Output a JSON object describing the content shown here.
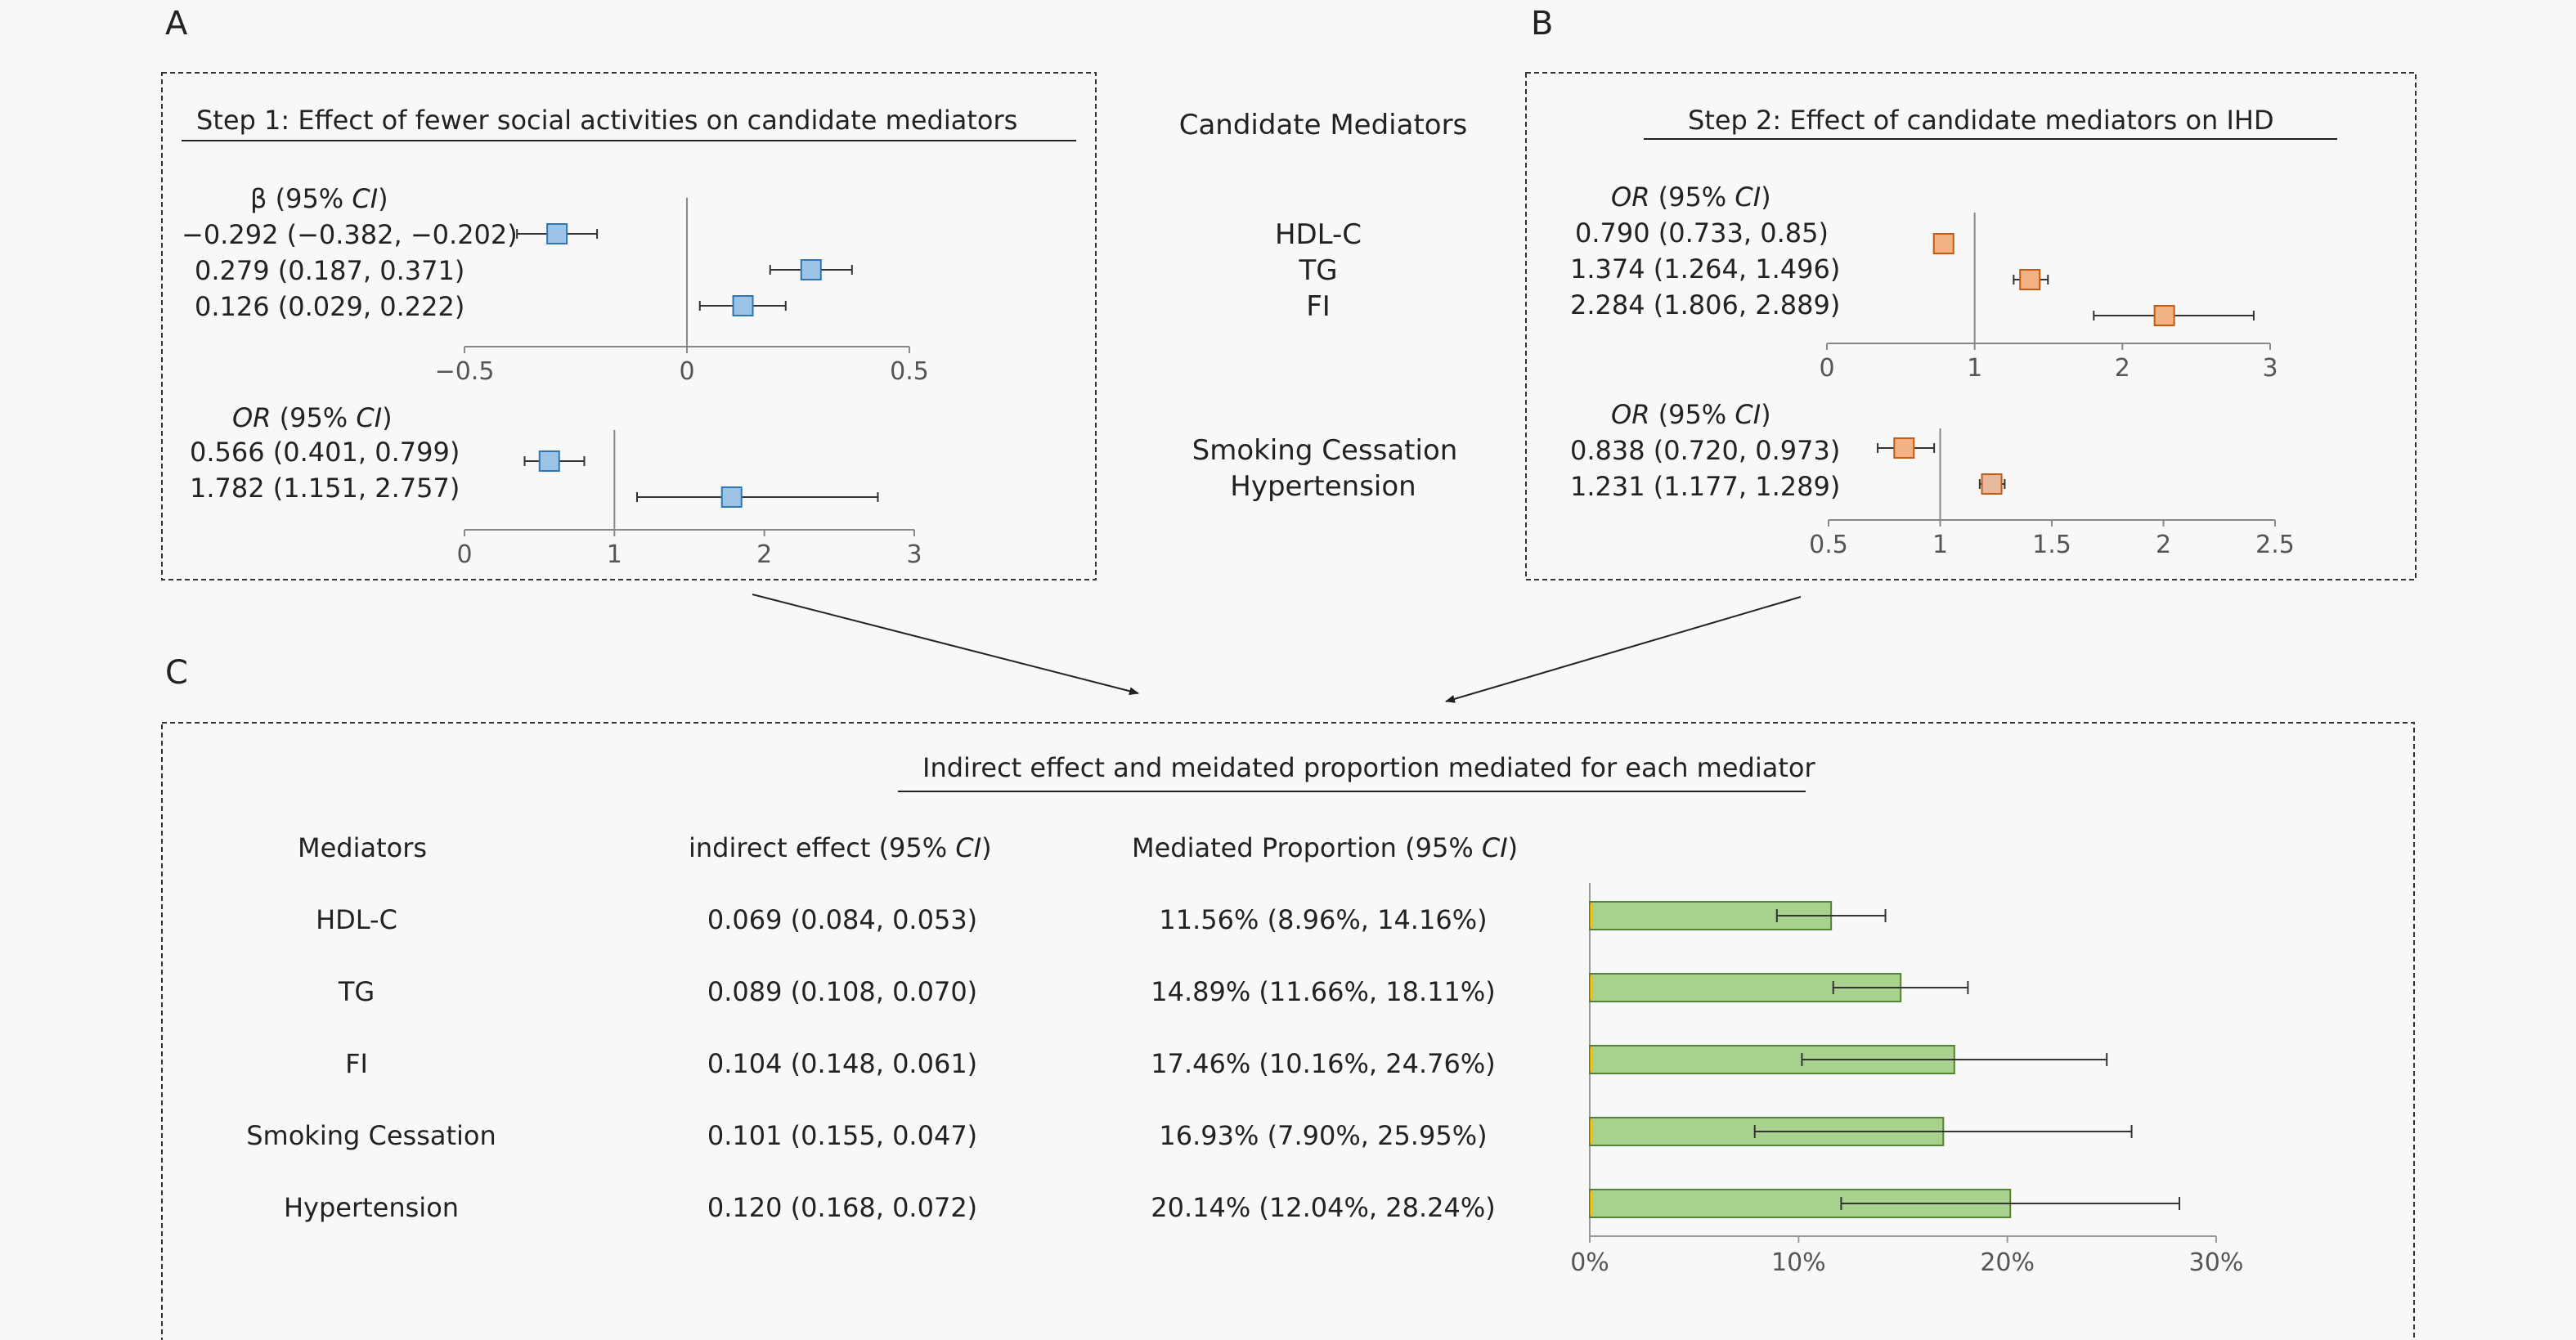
{
  "panels": {
    "a_label": "A",
    "b_label": "B",
    "c_label": "C"
  },
  "panel_a": {
    "title": "Step 1: Effect of fewer social activities on candidate mediators",
    "beta_header_prefix": "β (95% ",
    "beta_header_ci": "CI",
    "beta_header_suffix": ")",
    "beta_rows": [
      "−0.292 (−0.382, −0.202)",
      "0.279 (0.187, 0.371)",
      "0.126 (0.029, 0.222)"
    ],
    "or_header_prefix": "OR",
    "or_header_mid": " (95% ",
    "or_header_ci": "CI",
    "or_header_suffix": ")",
    "or_rows": [
      "0.566 (0.401, 0.799)",
      "1.782 (1.151, 2.757)"
    ]
  },
  "middle": {
    "heading": "Candidate Mediators",
    "mediators_top": [
      "HDL-C",
      "TG",
      "FI"
    ],
    "mediators_bottom": [
      "Smoking Cessation",
      "Hypertension"
    ]
  },
  "panel_b": {
    "title": "Step 2: Effect of candidate mediators on IHD",
    "header_prefix": "OR",
    "header_mid": " (95% ",
    "header_ci": "CI",
    "header_suffix": ")",
    "rows_top": [
      "0.790 (0.733, 0.85)",
      "1.374 (1.264, 1.496)",
      "2.284 (1.806, 2.889)"
    ],
    "rows_bottom": [
      "0.838 (0.720, 0.973)",
      "1.231 (1.177, 1.289)"
    ]
  },
  "panel_c": {
    "title": "Indirect effect and meidated proportion mediated for each mediator",
    "col_mediators": "Mediators",
    "col_indirect_prefix": "indirect effect (95% ",
    "col_indirect_ci": "CI",
    "col_indirect_suffix": ")",
    "col_prop_prefix": "Mediated Proportion (95% ",
    "col_prop_ci": "CI",
    "col_prop_suffix": ")",
    "rows": [
      {
        "mediator": "HDL-C",
        "indirect": "0.069 (0.084, 0.053)",
        "proportion": "11.56% (8.96%, 14.16%)"
      },
      {
        "mediator": "TG",
        "indirect": "0.089 (0.108, 0.070)",
        "proportion": "14.89% (11.66%, 18.11%)"
      },
      {
        "mediator": "FI",
        "indirect": "0.104 (0.148, 0.061)",
        "proportion": "17.46% (10.16%, 24.76%)"
      },
      {
        "mediator": "Smoking Cessation",
        "indirect": "0.101 (0.155, 0.047)",
        "proportion": "16.93% (7.90%, 25.95%)"
      },
      {
        "mediator": "Hypertension",
        "indirect": "0.120 (0.168, 0.072)",
        "proportion": "20.14% (12.04%, 28.24%)"
      }
    ]
  },
  "colors": {
    "blue_marker": "#9dc3e6",
    "blue_marker_edge": "#2e75b6",
    "orange_marker": "#f4b183",
    "orange_marker_edge": "#c55a11",
    "tan_marker": "#e6b89c",
    "bar_fill": "#a9d18e",
    "bar_edge": "#548235",
    "bar_left_accent": "#ffc000"
  },
  "chart_data": [
    {
      "type": "scatter",
      "name": "Panel A beta forest plot",
      "points": [
        {
          "y": 0.0,
          "x": -0.292,
          "lo": -0.382,
          "hi": -0.202
        },
        {
          "y": 1.0,
          "x": 0.279,
          "lo": 0.187,
          "hi": 0.371
        },
        {
          "y": 2.0,
          "x": 0.126,
          "lo": 0.029,
          "hi": 0.222
        }
      ],
      "ref": 0,
      "xlim": [
        -0.5,
        0.5
      ],
      "ticks": [
        -0.5,
        0,
        0.5
      ],
      "tick_labels": [
        "−0.5",
        "0",
        "0.5"
      ]
    },
    {
      "type": "scatter",
      "name": "Panel A OR forest plot",
      "points": [
        {
          "y": 0.0,
          "x": 0.566,
          "lo": 0.401,
          "hi": 0.799
        },
        {
          "y": 1.0,
          "x": 1.782,
          "lo": 1.151,
          "hi": 2.757
        }
      ],
      "ref": 1,
      "xlim": [
        0,
        3
      ],
      "ticks": [
        0,
        1,
        2,
        3
      ],
      "tick_labels": [
        "0",
        "1",
        "2",
        "3"
      ]
    },
    {
      "type": "scatter",
      "name": "Panel B OR forest plot (top)",
      "points": [
        {
          "y": 0.0,
          "x": 0.79,
          "lo": 0.733,
          "hi": 0.85
        },
        {
          "y": 1.0,
          "x": 1.374,
          "lo": 1.264,
          "hi": 1.496
        },
        {
          "y": 2.0,
          "x": 2.284,
          "lo": 1.806,
          "hi": 2.889
        }
      ],
      "ref": 1,
      "xlim": [
        0,
        3
      ],
      "ticks": [
        0,
        1,
        2,
        3
      ],
      "tick_labels": [
        "0",
        "1",
        "2",
        "3"
      ]
    },
    {
      "type": "scatter",
      "name": "Panel B OR forest plot (bottom)",
      "points": [
        {
          "y": 0.0,
          "x": 0.838,
          "lo": 0.72,
          "hi": 0.973
        },
        {
          "y": 1.0,
          "x": 1.231,
          "lo": 1.177,
          "hi": 1.289
        }
      ],
      "ref": 1,
      "xlim": [
        0.5,
        2.5
      ],
      "ticks": [
        0.5,
        1,
        1.5,
        2,
        2.5
      ],
      "tick_labels": [
        "0.5",
        "1",
        "1.5",
        "2",
        "2.5"
      ]
    },
    {
      "type": "bar",
      "orientation": "horizontal",
      "categories": [
        "HDL-C",
        "TG",
        "FI",
        "Smoking Cessation",
        "Hypertension"
      ],
      "values": [
        11.56,
        14.89,
        17.46,
        16.93,
        20.14
      ],
      "ci_low": [
        8.96,
        11.66,
        10.16,
        7.9,
        12.04
      ],
      "ci_high": [
        14.16,
        18.11,
        24.76,
        25.95,
        28.24
      ],
      "xlim": [
        0,
        30
      ],
      "ticks": [
        0,
        10,
        20,
        30
      ],
      "tick_labels": [
        "0%",
        "10%",
        "20%",
        "30%"
      ]
    }
  ]
}
